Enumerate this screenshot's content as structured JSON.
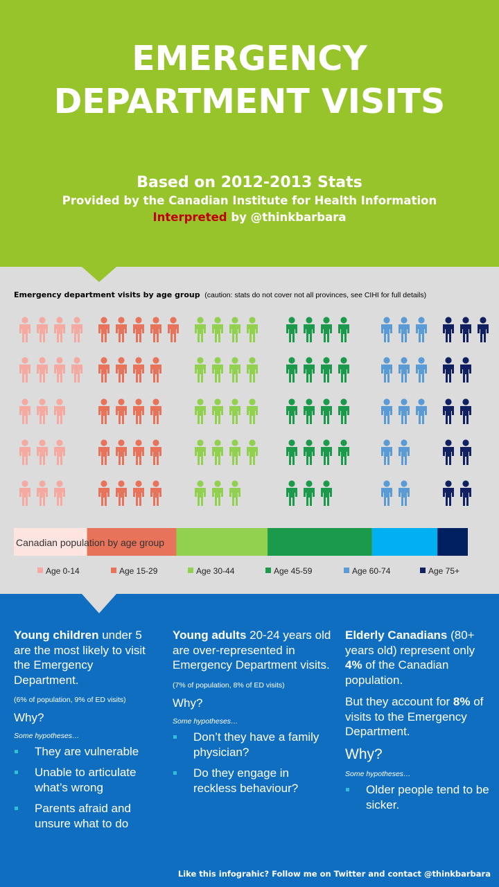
{
  "header": {
    "title_line1": "EMERGENCY",
    "title_line2": "DEPARTMENT VISITS",
    "subtitle1": "Based on 2012-2013 Stats",
    "subtitle2": "Provided by the Canadian Institute for Health Information",
    "interpreted": "Interpreted",
    "by": " by @thinkbarbara"
  },
  "chart_data": {
    "type": "pictograph",
    "title": "Emergency department visits by age group",
    "caution": "(caution: stats do not cover not all provinces, see CIHI for full details)",
    "groups": [
      {
        "name": "Age 0-14",
        "color": "#f4aaa0",
        "icons_per_row": [
          4,
          4,
          3,
          3,
          3
        ],
        "population_share": 15.9
      },
      {
        "name": "Age 15-29",
        "color": "#e8735b",
        "icons_per_row": [
          5,
          4,
          4,
          4,
          4
        ],
        "population_share": 19.4
      },
      {
        "name": "Age 30-44",
        "color": "#92d050",
        "icons_per_row": [
          4,
          4,
          4,
          4,
          3
        ],
        "population_share": 19.8
      },
      {
        "name": "Age 45-59",
        "color": "#1a9a4a",
        "icons_per_row": [
          4,
          4,
          4,
          4,
          3
        ],
        "population_share": 22.7
      },
      {
        "name": "Age 60-74",
        "color": "#5b9bd5",
        "icons_per_row": [
          3,
          3,
          3,
          2,
          2
        ],
        "population_share": 14.2
      },
      {
        "name": "Age 75+",
        "color": "#102060",
        "icons_per_row": [
          3,
          2,
          2,
          2,
          2
        ],
        "population_share": 6.6
      }
    ],
    "bar_colors": [
      "#fce4e0",
      "#e8735b",
      "#92d050",
      "#1a9a4a",
      "#00b0f0",
      "#002060"
    ],
    "bar_label": "Canadian population by age group"
  },
  "columns": [
    {
      "bold": "Young children",
      "text": " under 5 are the most likely to visit the Emergency Department.",
      "small": "(6% of population, 9% of ED visits)",
      "why": "Why?",
      "hyp": "Some hypotheses…",
      "items": [
        "They are vulnerable",
        "Unable to articulate what’s wrong",
        "Parents afraid and unsure what to do"
      ]
    },
    {
      "bold": "Young adults",
      "text": " 20-24 years old are over-represented in Emergency Department visits.",
      "small": "(7% of population, 8% of ED visits)",
      "why": "Why?",
      "hyp": "Some hypotheses…",
      "items": [
        "Don’t they have a family physician?",
        "Do they engage in reckless behaviour?"
      ]
    },
    {
      "bold": "Elderly Canadians",
      "text": " (80+ years old) represent only ",
      "pct1": "4%",
      "text2": " of the Canadian population.",
      "but": "But they account for ",
      "pct2": "8%",
      "text3": " of visits to the Emergency Department.",
      "why": "Why?",
      "hyp": "Some hypotheses…",
      "items": [
        "Older people tend to be sicker."
      ]
    }
  ],
  "footer": "Like this infograhic? Follow me on Twitter and contact @thinkbarbara"
}
